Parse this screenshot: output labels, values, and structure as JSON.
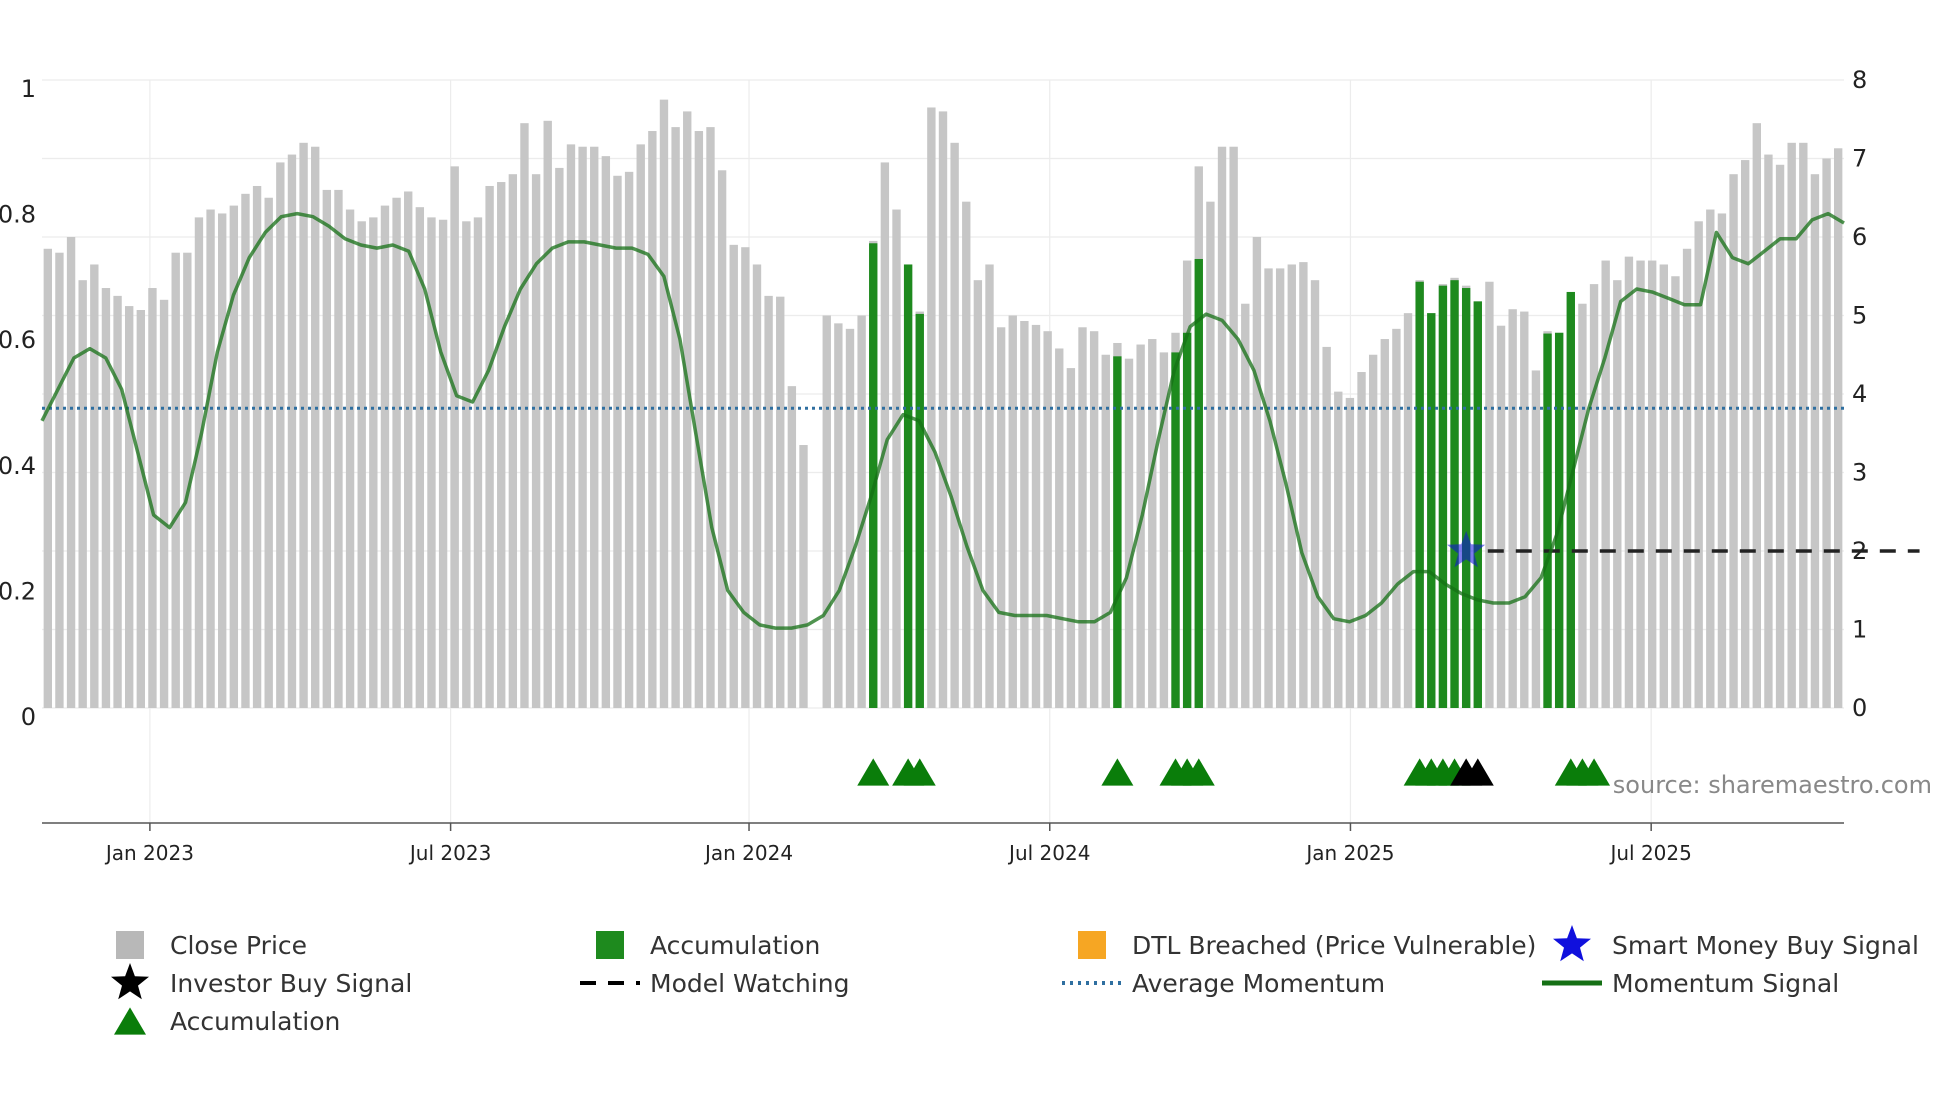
{
  "chart_data": {
    "type": "bar",
    "title": "",
    "source": "source: sharemaestro.com",
    "left_axis": {
      "ticks": [
        0,
        0.2,
        0.4,
        0.6,
        0.8,
        1
      ],
      "tick_labels": [
        "0",
        "0.2",
        "0.4",
        "0.6",
        "0.8",
        "1"
      ],
      "ylim": [
        0,
        1
      ]
    },
    "right_axis": {
      "ticks": [
        0,
        1,
        2,
        3,
        4,
        5,
        6,
        7,
        8
      ],
      "tick_labels": [
        "0",
        "1",
        "2",
        "3",
        "4",
        "5",
        "6",
        "7",
        "8"
      ],
      "ylim": [
        0,
        8
      ]
    },
    "x_axis": {
      "ticks": [
        0,
        131,
        261,
        392,
        523,
        654
      ],
      "tick_labels": [
        "Jan 2023",
        "Jul 2023",
        "Jan 2024",
        "Jul 2024",
        "Jan 2025",
        "Jul 2025"
      ],
      "range_days": [
        -47,
        738
      ],
      "unit": "days since 2023-01-01"
    },
    "close_price": [
      5.85,
      5.8,
      6.0,
      5.45,
      5.65,
      5.35,
      5.25,
      5.12,
      5.07,
      5.35,
      5.2,
      5.8,
      5.8,
      6.25,
      6.35,
      6.3,
      6.4,
      6.55,
      6.65,
      6.5,
      6.95,
      7.05,
      7.2,
      7.15,
      6.6,
      6.6,
      6.35,
      6.2,
      6.25,
      6.4,
      6.5,
      6.58,
      6.38,
      6.25,
      6.22,
      6.9,
      6.2,
      6.25,
      6.65,
      6.7,
      6.8,
      7.45,
      6.8,
      7.48,
      6.88,
      7.18,
      7.15,
      7.15,
      7.03,
      6.78,
      6.83,
      7.18,
      7.35,
      7.75,
      7.4,
      7.6,
      7.35,
      7.4,
      6.85,
      5.9,
      5.87,
      5.65,
      5.25,
      5.24,
      4.1,
      3.35,
      0,
      5.0,
      4.9,
      4.83,
      5.0,
      5.95,
      6.95,
      6.35,
      5.65,
      5.05,
      7.65,
      7.6,
      7.2,
      6.45,
      5.45,
      5.65,
      4.85,
      5.0,
      4.93,
      4.88,
      4.8,
      4.58,
      4.33,
      4.85,
      4.8,
      4.5,
      4.65,
      4.45,
      4.63,
      4.7,
      4.53,
      4.78,
      5.7,
      6.9,
      6.45,
      7.15,
      7.15,
      5.15,
      6.0,
      5.6,
      5.6,
      5.65,
      5.68,
      5.45,
      4.6,
      4.03,
      3.95,
      4.28,
      4.5,
      4.7,
      4.83,
      5.03,
      5.45,
      5.03,
      5.4,
      5.48,
      5.38,
      5.18,
      5.43,
      4.87,
      5.08,
      5.05,
      4.3,
      4.8,
      4.78,
      5.27,
      5.15,
      5.4,
      5.7,
      5.45,
      5.75,
      5.7,
      5.7,
      5.65,
      5.5,
      5.85,
      6.2,
      6.35,
      6.3,
      6.8,
      6.98,
      7.45,
      7.05,
      6.92,
      7.2,
      7.2,
      6.8,
      7.0,
      7.13
    ],
    "accumulation_bars": [
      {
        "index": 71,
        "value": 5.92
      },
      {
        "index": 74,
        "value": 5.65
      },
      {
        "index": 75,
        "value": 5.02
      },
      {
        "index": 92,
        "value": 4.48
      },
      {
        "index": 97,
        "value": 4.53
      },
      {
        "index": 98,
        "value": 4.78
      },
      {
        "index": 99,
        "value": 5.72
      },
      {
        "index": 118,
        "value": 5.43
      },
      {
        "index": 119,
        "value": 5.03
      },
      {
        "index": 120,
        "value": 5.38
      },
      {
        "index": 121,
        "value": 5.45
      },
      {
        "index": 122,
        "value": 5.35
      },
      {
        "index": 123,
        "value": 5.18
      },
      {
        "index": 129,
        "value": 4.77
      },
      {
        "index": 130,
        "value": 4.78
      },
      {
        "index": 131,
        "value": 5.3
      }
    ],
    "accumulation_markers": [
      71,
      74,
      75,
      92,
      97,
      98,
      99,
      118,
      119,
      120,
      121,
      131,
      132,
      133
    ],
    "investor_buy_markers": [
      122,
      123
    ],
    "momentum_signal": [
      0.47,
      0.52,
      0.57,
      0.585,
      0.57,
      0.52,
      0.42,
      0.32,
      0.3,
      0.34,
      0.45,
      0.58,
      0.67,
      0.73,
      0.77,
      0.795,
      0.8,
      0.795,
      0.78,
      0.76,
      0.75,
      0.745,
      0.75,
      0.74,
      0.68,
      0.58,
      0.51,
      0.5,
      0.55,
      0.62,
      0.68,
      0.72,
      0.745,
      0.755,
      0.755,
      0.75,
      0.745,
      0.745,
      0.735,
      0.7,
      0.6,
      0.45,
      0.3,
      0.2,
      0.165,
      0.145,
      0.14,
      0.14,
      0.145,
      0.16,
      0.2,
      0.27,
      0.35,
      0.44,
      0.48,
      0.47,
      0.42,
      0.35,
      0.27,
      0.2,
      0.165,
      0.16,
      0.16,
      0.16,
      0.155,
      0.15,
      0.15,
      0.165,
      0.22,
      0.32,
      0.44,
      0.55,
      0.62,
      0.64,
      0.63,
      0.6,
      0.55,
      0.47,
      0.37,
      0.26,
      0.19,
      0.155,
      0.15,
      0.16,
      0.18,
      0.21,
      0.23,
      0.23,
      0.21,
      0.195,
      0.185,
      0.18,
      0.18,
      0.19,
      0.22,
      0.29,
      0.39,
      0.49,
      0.57,
      0.66,
      0.68,
      0.675,
      0.665,
      0.655,
      0.655,
      0.77,
      0.73,
      0.72,
      0.74,
      0.76,
      0.76,
      0.79,
      0.8,
      0.785
    ],
    "average_momentum": 0.49,
    "model_watching": {
      "start_index": 123,
      "end_index": 161,
      "value": 2.0
    },
    "smart_money_star": {
      "index": 122,
      "value": 2.0
    },
    "legend": [
      {
        "label": "Close Price",
        "symbol": "square",
        "color": "#b8b8b8"
      },
      {
        "label": "Accumulation",
        "symbol": "square",
        "color": "#1e8a1e"
      },
      {
        "label": "DTL Breached (Price Vulnerable)",
        "symbol": "square",
        "color": "#f6a623"
      },
      {
        "label": "Smart Money Buy Signal",
        "symbol": "star",
        "color": "#1010dd"
      },
      {
        "label": "Investor Buy Signal",
        "symbol": "star",
        "color": "#000000"
      },
      {
        "label": "Model Watching",
        "symbol": "dash",
        "color": "#000000"
      },
      {
        "label": "Average Momentum",
        "symbol": "dots",
        "color": "#2f6fa0"
      },
      {
        "label": "Momentum Signal",
        "symbol": "line",
        "color": "#157015"
      },
      {
        "label": "Accumulation",
        "symbol": "triangle",
        "color": "#0a7d0a"
      }
    ],
    "colors": {
      "close": "#c6c6c6",
      "accum": "#1e8a1e",
      "momentum": "#157015",
      "average": "#2f6fa0",
      "grid": "#ececec",
      "axis": "#555555",
      "star": "#1010dd",
      "investor": "#000000",
      "triangle": "#0a7d0a"
    }
  }
}
